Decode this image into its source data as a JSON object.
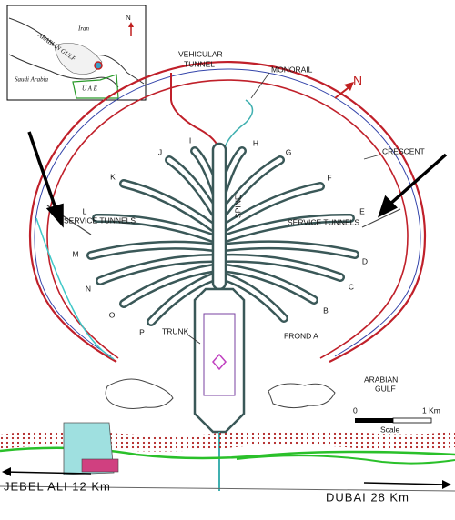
{
  "inset": {
    "labels": [
      "Iran",
      "ARABIAN GULF",
      "Saudi Arabia",
      "U A E"
    ],
    "north": "N"
  },
  "labels": {
    "vehicular_tunnel": [
      "VEHICULAR",
      "TUNNEL"
    ],
    "monorail": "MONORAIL",
    "north": "N",
    "crescent": "CRESCENT",
    "service_tunnels_left": "SERVICE TUNNELS",
    "service_tunnels_right": "SERVICE TUNNELS",
    "spine": "SPINE",
    "trunk": "TRUNK",
    "gulf": [
      "ARABIAN",
      "GULF"
    ]
  },
  "fronds": [
    {
      "label": "FROND A"
    },
    {
      "label": "B"
    },
    {
      "label": "C"
    },
    {
      "label": "D"
    },
    {
      "label": "E"
    },
    {
      "label": "F"
    },
    {
      "label": "G"
    },
    {
      "label": "H"
    },
    {
      "label": "I"
    },
    {
      "label": "J"
    },
    {
      "label": "K"
    },
    {
      "label": "L"
    },
    {
      "label": "M"
    },
    {
      "label": "N"
    },
    {
      "label": "O"
    },
    {
      "label": "P"
    }
  ],
  "scale": {
    "start": "0",
    "end": "1 Km",
    "title": "Scale"
  },
  "directions": [
    "JEBEL ALI 12 Km",
    "DUBAI    28 Km"
  ]
}
